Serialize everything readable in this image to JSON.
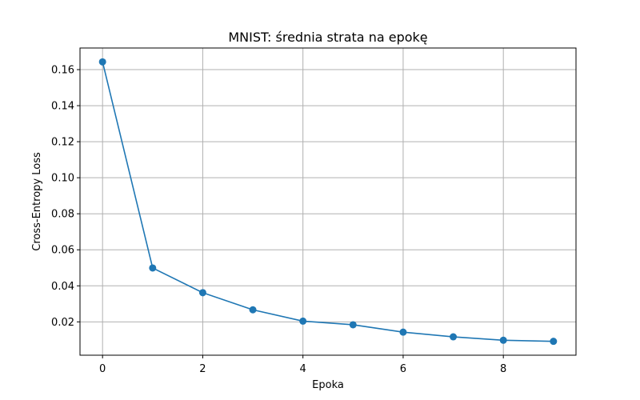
{
  "chart_data": {
    "type": "line",
    "title": "MNIST: średnia strata na epokę",
    "xlabel": "Epoka",
    "ylabel": "Cross-Entropy Loss",
    "x": [
      0,
      1,
      2,
      3,
      4,
      5,
      6,
      7,
      8,
      9
    ],
    "series": [
      {
        "values": [
          0.1643,
          0.0499,
          0.0362,
          0.0267,
          0.0204,
          0.0184,
          0.0143,
          0.0117,
          0.0098,
          0.0092
        ],
        "color": "#1f77b4",
        "marker": "circle"
      }
    ],
    "xlim": [
      -0.45,
      9.45
    ],
    "ylim": [
      0.0015,
      0.172
    ],
    "xticks": [
      0,
      2,
      4,
      6,
      8
    ],
    "xtick_labels": [
      "0",
      "2",
      "4",
      "6",
      "8"
    ],
    "yticks": [
      0.02,
      0.04,
      0.06,
      0.08,
      0.1,
      0.12,
      0.14,
      0.16
    ],
    "ytick_labels": [
      "0.02",
      "0.04",
      "0.06",
      "0.08",
      "0.10",
      "0.12",
      "0.14",
      "0.16"
    ],
    "grid": true
  }
}
